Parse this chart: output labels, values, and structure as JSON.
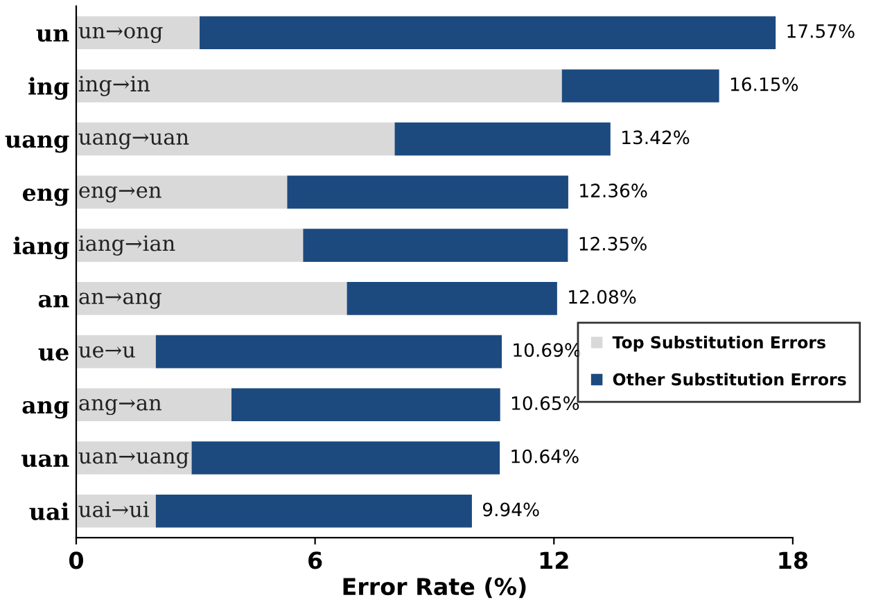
{
  "chart_data": {
    "type": "bar",
    "orientation": "horizontal",
    "stacked": true,
    "categories": [
      "un",
      "ing",
      "uang",
      "eng",
      "iang",
      "an",
      "ue",
      "ang",
      "uan",
      "uai"
    ],
    "xlabel": "Error Rate (%)",
    "xlim": [
      0,
      18
    ],
    "xticks": [
      0,
      6,
      12,
      18
    ],
    "series": [
      {
        "name": "Top Substitution Errors",
        "color": "#d9d9d9",
        "values": [
          3.1,
          12.2,
          8.0,
          5.3,
          5.7,
          6.8,
          2.0,
          3.9,
          2.9,
          2.0
        ],
        "value_labels": [
          "un→ong",
          "ing→in",
          "uang→uan",
          "eng→en",
          "iang→ian",
          "an→ang",
          "ue→u",
          "ang→an",
          "uan→uang",
          "uai→ui"
        ]
      },
      {
        "name": "Other Substitution Errors",
        "color": "#1c4a7f",
        "values": [
          14.47,
          3.95,
          5.42,
          7.06,
          6.65,
          5.28,
          8.69,
          6.75,
          7.74,
          7.94
        ]
      }
    ],
    "totals": [
      "17.57%",
      "16.15%",
      "13.42%",
      "12.36%",
      "12.35%",
      "12.08%",
      "10.69%",
      "10.65%",
      "10.64%",
      "9.94%"
    ],
    "legend": "right",
    "grid": false
  }
}
